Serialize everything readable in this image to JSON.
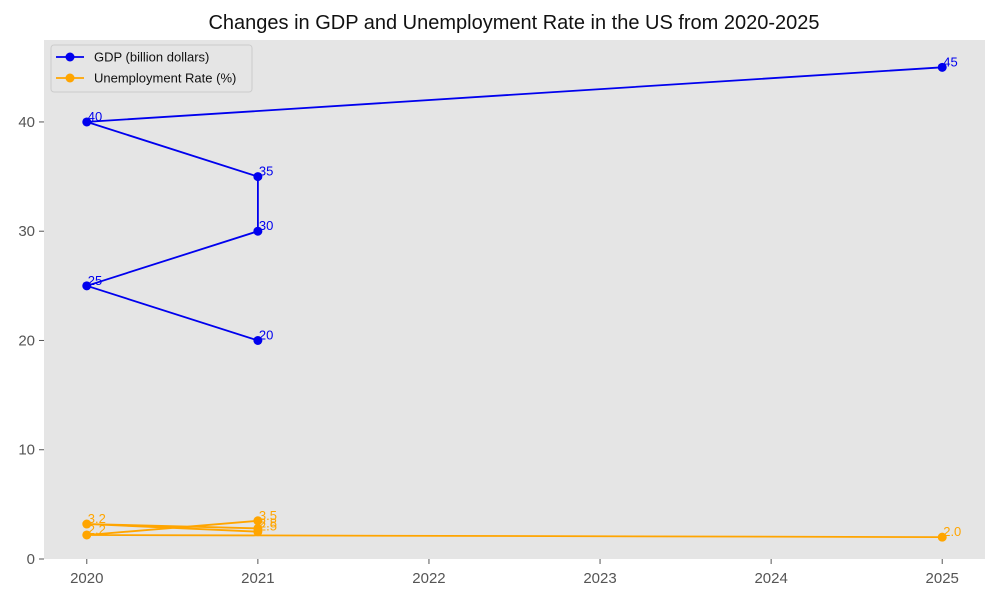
{
  "chart_data": {
    "type": "line",
    "title": "Changes in GDP and Unemployment Rate in the US from 2020-2025",
    "xlabel": "",
    "ylabel": "",
    "xlim": [
      2019.75,
      2025.25
    ],
    "ylim": [
      0,
      47.5
    ],
    "xticks": [
      2020,
      2021,
      2022,
      2023,
      2024,
      2025
    ],
    "yticks": [
      0,
      10,
      20,
      30,
      40
    ],
    "grid": false,
    "legend_position": "top-left",
    "background_color": "#e5e5e5",
    "series": [
      {
        "name": "GDP (billion dollars)",
        "color": "#0000ee",
        "x": [
          2021,
          2020,
          2021,
          2021,
          2020,
          2025
        ],
        "y": [
          20,
          25,
          30,
          35,
          40,
          45
        ]
      },
      {
        "name": "Unemployment Rate (%)",
        "color": "#ffa500",
        "x": [
          2021,
          2020,
          2021,
          2021,
          2020,
          2025
        ],
        "y": [
          2.5,
          3.2,
          2.8,
          3.5,
          2.2,
          2.0
        ],
        "labels": [
          "2.5",
          "3.2",
          "2.8",
          "3.5",
          "2.2",
          "2.0"
        ]
      }
    ]
  }
}
